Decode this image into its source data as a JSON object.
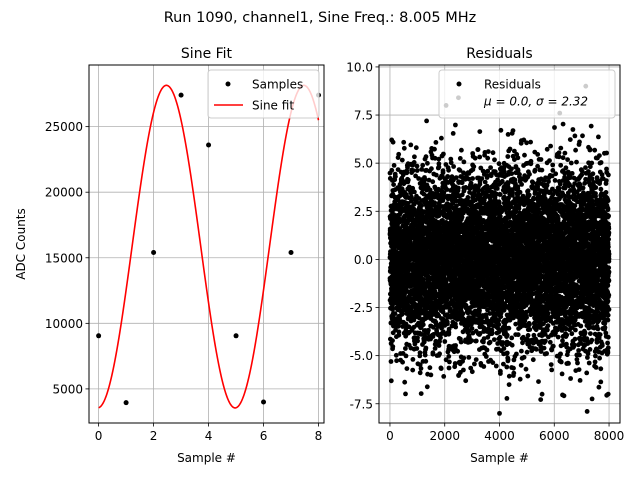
{
  "figure": {
    "suptitle": "Run 1090, channel1, Sine Freq.: 8.005 MHz"
  },
  "chart_data": [
    {
      "type": "line",
      "title": "Sine Fit",
      "xlabel": "Sample #",
      "ylabel": "ADC Counts",
      "xlim": [
        -0.35,
        8.2
      ],
      "ylim": [
        2400,
        29700
      ],
      "xticks": [
        0,
        2,
        4,
        6,
        8
      ],
      "yticks": [
        5000,
        10000,
        15000,
        20000,
        25000
      ],
      "grid": true,
      "legend_position": "top-right",
      "series": [
        {
          "name": "Samples",
          "style": "markers",
          "color": "#000000",
          "x": [
            0,
            1,
            2,
            3,
            4,
            5,
            6,
            7,
            8
          ],
          "y": [
            9050,
            3950,
            15400,
            27400,
            23600,
            9050,
            4000,
            15400,
            27400
          ]
        },
        {
          "name": "Sine fit",
          "style": "line",
          "color": "#ff0000",
          "model": {
            "offset": 15850,
            "amplitude": 12300,
            "cycles_per_sample": 0.2,
            "phase": 3.1
          },
          "x_range": [
            0,
            8
          ]
        }
      ]
    },
    {
      "type": "scatter",
      "title": "Residuals",
      "xlabel": "Sample #",
      "xlim": [
        -400,
        8400
      ],
      "ylim": [
        -8.5,
        10.1
      ],
      "xticks": [
        0,
        2000,
        4000,
        6000,
        8000
      ],
      "yticks": [
        -7.5,
        -5.0,
        -2.5,
        0.0,
        2.5,
        5.0,
        7.5,
        10.0
      ],
      "grid": true,
      "legend_position": "top-right",
      "series": [
        {
          "name": "Residuals",
          "color": "#000000",
          "n_points": 8000,
          "x_range": [
            0,
            8000
          ],
          "mean": 0.0,
          "std": 2.32,
          "outliers": [
            {
              "x": 2050,
              "y": 8.0
            },
            {
              "x": 2500,
              "y": 8.4
            },
            {
              "x": 6200,
              "y": 7.6
            },
            {
              "x": 7150,
              "y": 9.0
            },
            {
              "x": 4000,
              "y": -8.0
            },
            {
              "x": 7200,
              "y": -7.9
            }
          ]
        }
      ],
      "legend_label": "Residuals",
      "legend_stats": "μ = 0.0, σ = 2.32"
    }
  ]
}
